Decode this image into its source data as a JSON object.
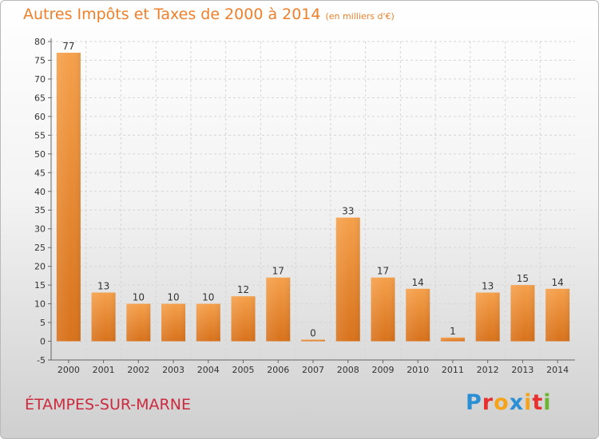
{
  "header": {
    "title": "Autres Impôts et Taxes de 2000 à 2014",
    "subtitle": "(en milliers d'€)"
  },
  "footer": {
    "commune": "ÉTAMPES-SUR-MARNE",
    "logo": "Proxiti",
    "logo_colors": [
      "#2b8fd6",
      "#e8312f",
      "#f4a31b",
      "#2b8fd6",
      "#f4a31b",
      "#e8312f",
      "#6ab72f"
    ]
  },
  "colors": {
    "bar_light": "#f5a04b",
    "bar_dark": "#d8721c",
    "title": "#f07f2a",
    "commune": "#cc2a3e",
    "grid": "#d6d6d6"
  },
  "chart_data": {
    "type": "bar",
    "categories": [
      "2000",
      "2001",
      "2002",
      "2003",
      "2004",
      "2005",
      "2006",
      "2007",
      "2008",
      "2009",
      "2010",
      "2011",
      "2012",
      "2013",
      "2014"
    ],
    "values": [
      77,
      13,
      10,
      10,
      10,
      12,
      17,
      0,
      33,
      17,
      14,
      1,
      13,
      15,
      14
    ],
    "data_labels": [
      "77",
      "13",
      "10",
      "10",
      "10",
      "12",
      "17",
      "0",
      "33",
      "17",
      "14",
      "1",
      "13",
      "15",
      "14"
    ],
    "ylim": [
      -5,
      80
    ],
    "yticks": [
      -5,
      0,
      5,
      10,
      15,
      20,
      25,
      30,
      35,
      40,
      45,
      50,
      55,
      60,
      65,
      70,
      75,
      80
    ],
    "grid": true,
    "title": "Autres Impôts et Taxes de 2000 à 2014",
    "xlabel": "",
    "ylabel": ""
  }
}
